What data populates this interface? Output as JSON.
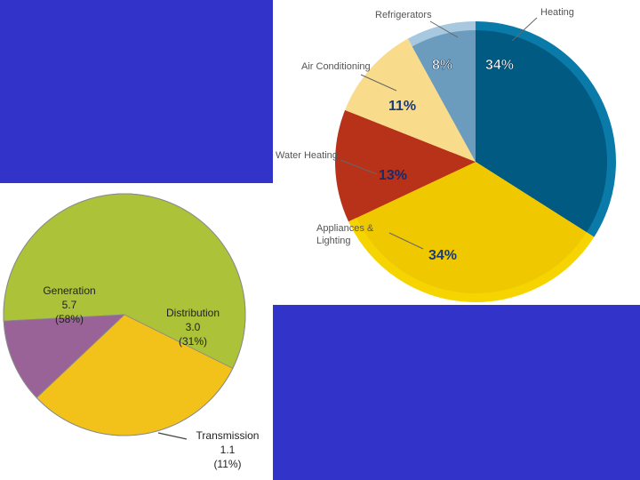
{
  "colors": {
    "background_blue": "#3233c8",
    "white": "#ffffff"
  },
  "chart_data": [
    {
      "type": "pie",
      "title": "",
      "categories": [
        "Heating",
        "Appliances & Lighting",
        "Water Heating",
        "Air Conditioning",
        "Refrigerators"
      ],
      "values": [
        34,
        34,
        13,
        11,
        8
      ],
      "value_labels": [
        "34%",
        "34%",
        "13%",
        "11%",
        "8%"
      ],
      "colors": [
        "#005a82",
        "#f0c800",
        "#b8321a",
        "#f8dc8c",
        "#6b9cbe"
      ],
      "rim_colors": [
        "#0a7aa8",
        "#f6d400",
        "#b8321a",
        "#f8dc8c",
        "#a8c8e0"
      ],
      "legend": "callout labels"
    },
    {
      "type": "pie",
      "title": "",
      "categories": [
        "Generation",
        "Distribution",
        "Transmission"
      ],
      "values": [
        5.7,
        3.0,
        1.1
      ],
      "value_labels": [
        "5.7",
        "3.0",
        "1.1"
      ],
      "percent_labels": [
        "(58%)",
        "(31%)",
        "(11%)"
      ],
      "colors": [
        "#acc239",
        "#f2c11a",
        "#996397"
      ],
      "legend": "in-slice labels"
    }
  ]
}
